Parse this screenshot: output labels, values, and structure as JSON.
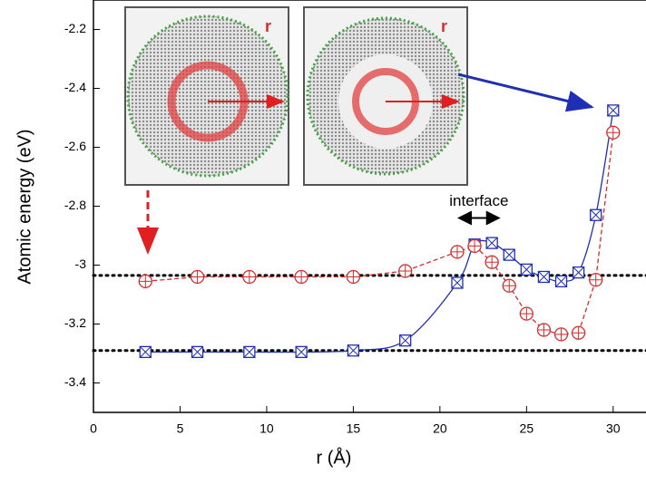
{
  "chart_data": {
    "type": "line",
    "x_label": "r (Å)",
    "y_label": "Atomic energy (eV)",
    "annotation": "interface",
    "annotation_span": [
      21,
      23.5
    ],
    "annotation_y": -2.84,
    "inset_labels": [
      "r",
      "r"
    ],
    "xlim": [
      0,
      32
    ],
    "ylim": [
      -3.5,
      -2.1
    ],
    "xticks": [
      0,
      5,
      10,
      15,
      20,
      25,
      30
    ],
    "yticks": [
      -2.2,
      -2.4,
      -2.6,
      -2.8,
      -3.0,
      -3.2,
      -3.4
    ],
    "reference_lines": [
      -3.035,
      -3.29
    ],
    "x": [
      3,
      6,
      9,
      12,
      15,
      18,
      21,
      22,
      23,
      24,
      25,
      26,
      27,
      28,
      29,
      30
    ],
    "series": [
      {
        "color": "#1f2fb5",
        "marker": "square",
        "values": [
          -3.295,
          -3.295,
          -3.295,
          -3.295,
          -3.29,
          -3.256,
          -3.06,
          -2.93,
          -2.925,
          -2.965,
          -3.015,
          -3.04,
          -3.055,
          -3.025,
          -2.83,
          -2.475
        ]
      },
      {
        "color": "#d62b2b",
        "marker": "circle",
        "values": [
          -3.055,
          -3.04,
          -3.04,
          -3.04,
          -3.04,
          -3.02,
          -2.955,
          -2.935,
          -2.99,
          -3.07,
          -3.165,
          -3.22,
          -3.235,
          -3.23,
          -3.05,
          -2.55
        ]
      }
    ]
  }
}
